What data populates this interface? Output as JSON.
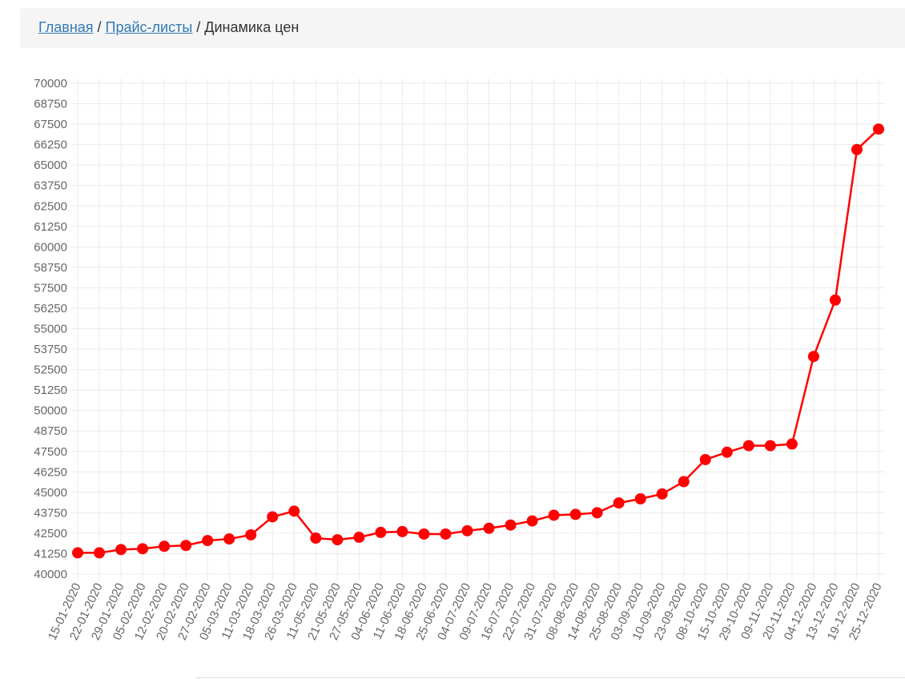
{
  "breadcrumb": {
    "items": [
      "Главная",
      "Прайс-листы",
      "Динамика цен"
    ],
    "separator": "/"
  },
  "chart_data": {
    "type": "line",
    "categories": [
      "15-01-2020",
      "22-01-2020",
      "29-01-2020",
      "05-02-2020",
      "12-02-2020",
      "20-02-2020",
      "27-02-2020",
      "05-03-2020",
      "11-03-2020",
      "18-03-2020",
      "26-03-2020",
      "11-05-2020",
      "21-05-2020",
      "27-05-2020",
      "04-06-2020",
      "11-06-2020",
      "18-06-2020",
      "25-06-2020",
      "04-07-2020",
      "09-07-2020",
      "16-07-2020",
      "22-07-2020",
      "31-07-2020",
      "08-08-2020",
      "14-08-2020",
      "25-08-2020",
      "03-09-2020",
      "10-09-2020",
      "23-09-2020",
      "08-10-2020",
      "15-10-2020",
      "29-10-2020",
      "09-11-2020",
      "20-11-2020",
      "04-12-2020",
      "13-12-2020",
      "19-12-2020",
      "25-12-2020"
    ],
    "values": [
      41300,
      41300,
      41500,
      41550,
      41700,
      41750,
      42050,
      42150,
      42400,
      43500,
      43850,
      42200,
      42100,
      42250,
      42550,
      42600,
      42450,
      42450,
      42650,
      42800,
      43000,
      43250,
      43600,
      43650,
      43750,
      44350,
      44600,
      44900,
      45650,
      47000,
      47450,
      47850,
      47850,
      47950,
      53300,
      56750,
      65950,
      67200
    ],
    "color": "#ff0000",
    "ylim": [
      40000,
      70000
    ],
    "yticks": [
      40000,
      41250,
      42500,
      43750,
      45000,
      46250,
      47500,
      48750,
      50000,
      51250,
      52500,
      53750,
      55000,
      56250,
      57500,
      58750,
      60000,
      61250,
      62500,
      63750,
      65000,
      66250,
      67500,
      68750,
      70000
    ],
    "grid": true
  }
}
